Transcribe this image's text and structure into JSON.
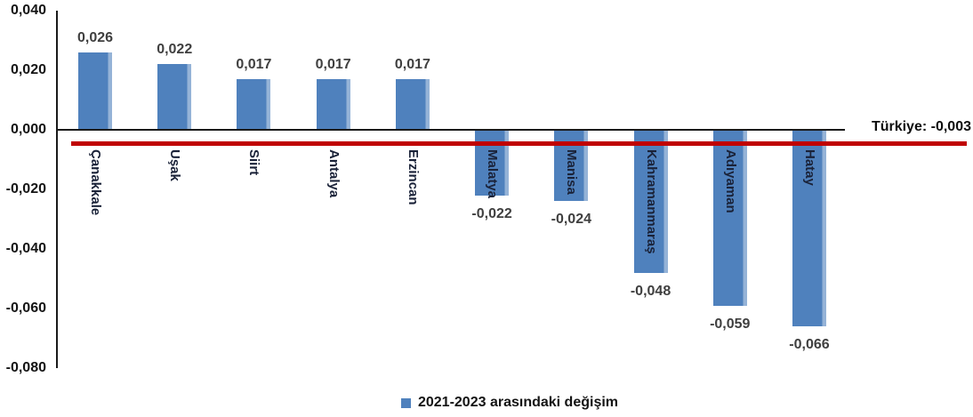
{
  "chart_data": {
    "type": "bar",
    "title": "",
    "categories": [
      "Çanakkale",
      "Uşak",
      "Siirt",
      "Antalya",
      "Erzincan",
      "Malatya",
      "Manisa",
      "Kahramanmaraş",
      "Adıyaman",
      "Hatay"
    ],
    "values": [
      0.026,
      0.022,
      0.017,
      0.017,
      0.017,
      -0.022,
      -0.024,
      -0.048,
      -0.059,
      -0.066
    ],
    "value_labels": [
      "0,026",
      "0,022",
      "0,017",
      "0,017",
      "0,017",
      "-0,022",
      "-0,024",
      "-0,048",
      "-0,059",
      "-0,066"
    ],
    "xlabel": "",
    "ylabel": "",
    "ylim": [
      -0.08,
      0.04
    ],
    "y_ticks": [
      {
        "value": 0.04,
        "label": "0,040"
      },
      {
        "value": 0.02,
        "label": "0,020"
      },
      {
        "value": 0.0,
        "label": "0,000"
      },
      {
        "value": -0.02,
        "label": "-0,020"
      },
      {
        "value": -0.04,
        "label": "-0,040"
      },
      {
        "value": -0.06,
        "label": "-0,060"
      },
      {
        "value": -0.08,
        "label": "-0,080"
      }
    ],
    "grid": false,
    "bar_color": "#4f81bd",
    "bar_highlight_color": "#95b3d7",
    "reference_line": {
      "label": "Türkiye: -0,003",
      "value": -0.003,
      "color": "#c00000"
    },
    "legend": {
      "label": "2021-2023 arasındaki değişim",
      "marker_color": "#4f81bd",
      "position": "bottom"
    }
  }
}
